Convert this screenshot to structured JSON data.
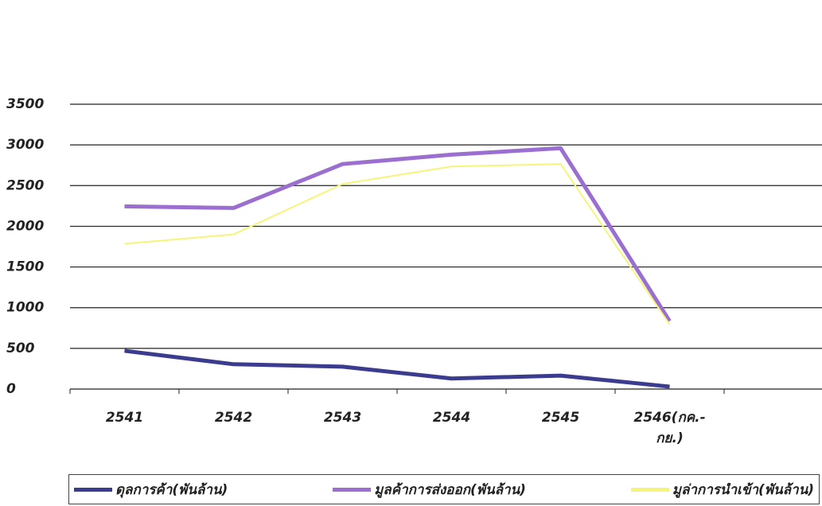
{
  "chart_data": {
    "type": "line",
    "categories": [
      "2541",
      "2542",
      "2543",
      "2544",
      "2545",
      "2546(กค.-กย.)",
      null
    ],
    "series": [
      {
        "name": "ดุลการค้า(พันล้าน)",
        "color": "#3b3b8f",
        "values": [
          470,
          305,
          275,
          130,
          165,
          30,
          null
        ]
      },
      {
        "name": "มูลค้าการส่งออก(พันล้าน)",
        "color": "#9b6fd0",
        "values": [
          2245,
          2225,
          2765,
          2880,
          2960,
          835,
          null
        ]
      },
      {
        "name": "มูล่าการนำเข้า(พันล้าน)",
        "color": "#f5f57a",
        "values": [
          1785,
          1900,
          2520,
          2735,
          2765,
          795,
          null
        ]
      }
    ],
    "ylim": [
      0,
      3500
    ],
    "yticks": [
      0,
      500,
      1000,
      1500,
      2000,
      2500,
      3000,
      3500
    ],
    "grid": true,
    "legend": "bottom"
  }
}
